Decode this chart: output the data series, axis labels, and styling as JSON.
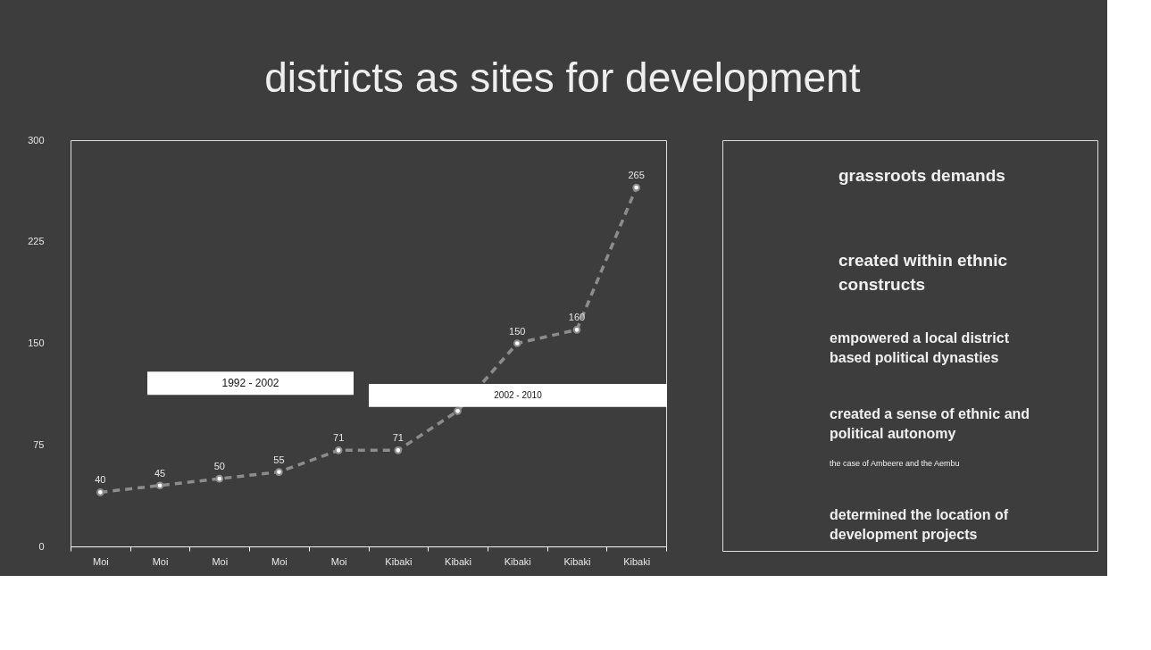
{
  "chart_data": [
    {
      "type": "line",
      "title": "districts as sites for development",
      "categories": [
        "Moi",
        "Moi",
        "Moi",
        "Moi",
        "Moi",
        "Kibaki",
        "Kibaki",
        "Kibaki",
        "Kibaki",
        "Kibaki"
      ],
      "series": [
        {
          "color": "#8c8c8c",
          "values": [
            40,
            45,
            50,
            55,
            71,
            71,
            100,
            150,
            160,
            265
          ]
        }
      ],
      "value_labels": [
        "40",
        "45",
        "50",
        "55",
        "71",
        "71",
        null,
        "150",
        "160",
        "265"
      ],
      "ylim": [
        0,
        300
      ],
      "yticks": [
        0,
        75,
        150,
        225,
        300
      ],
      "grid": false,
      "marker": "circle",
      "line_style": "dashed",
      "bands": [
        {
          "axis": "y",
          "from": 112,
          "to": 129,
          "label": "1992 - 2002",
          "color": "#ffffff"
        },
        {
          "axis": "y",
          "from": 103,
          "to": 120,
          "label": "2002 - 2010",
          "color": "#ffffff"
        }
      ]
    },
    {
      "type": "other",
      "annotations": [
        "grassroots demands",
        "created within ethnic constructs",
        "empowered a local district based political dynasties",
        "created a sense of ethnic and political autonomy",
        "the case of Ambeere and the Aembu",
        "determined the location of development projects"
      ]
    }
  ]
}
